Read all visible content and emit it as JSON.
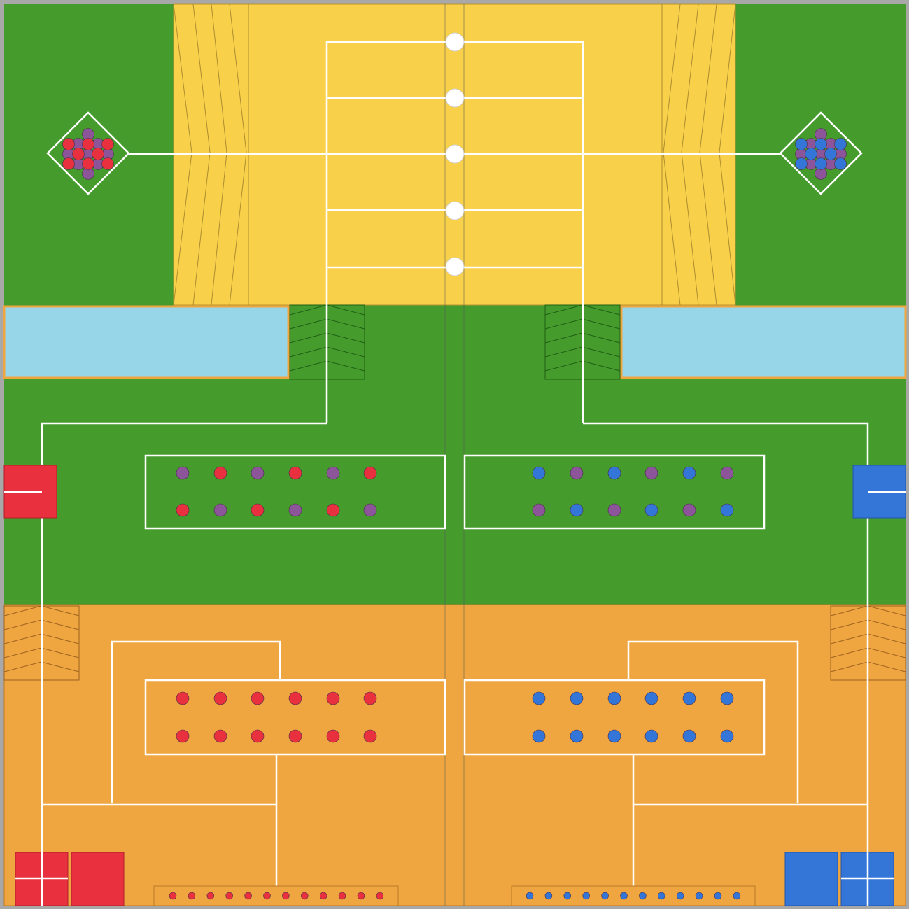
{
  "field": {
    "name": "competition-field-top-view",
    "colors": {
      "grass": "#469b2d",
      "yellow_zone": "#f8d04a",
      "orange_zone": "#f0a640",
      "water": "#96d6e8",
      "line": "#ffffff",
      "red": "#e8303e",
      "blue": "#3476d8",
      "purple": "#8c559a",
      "border": "#a8a8a8"
    }
  },
  "pieces": {
    "center_grass_left_top": [
      "purple",
      "red",
      "purple",
      "red",
      "purple",
      "red"
    ],
    "center_grass_left_bottom": [
      "red",
      "purple",
      "red",
      "purple",
      "red",
      "purple"
    ],
    "center_grass_right_top": [
      "blue",
      "purple",
      "blue",
      "purple",
      "blue",
      "purple"
    ],
    "center_grass_right_bottom": [
      "purple",
      "blue",
      "purple",
      "blue",
      "purple",
      "blue"
    ],
    "orange_left_rows": [
      "red",
      "red"
    ],
    "orange_right_rows": [
      "blue",
      "blue"
    ],
    "bottom_tray_left_count": 12,
    "bottom_tray_right_count": 12,
    "left_diamond_count": 13,
    "right_diamond_count": 13,
    "white_markers_count": 5
  }
}
